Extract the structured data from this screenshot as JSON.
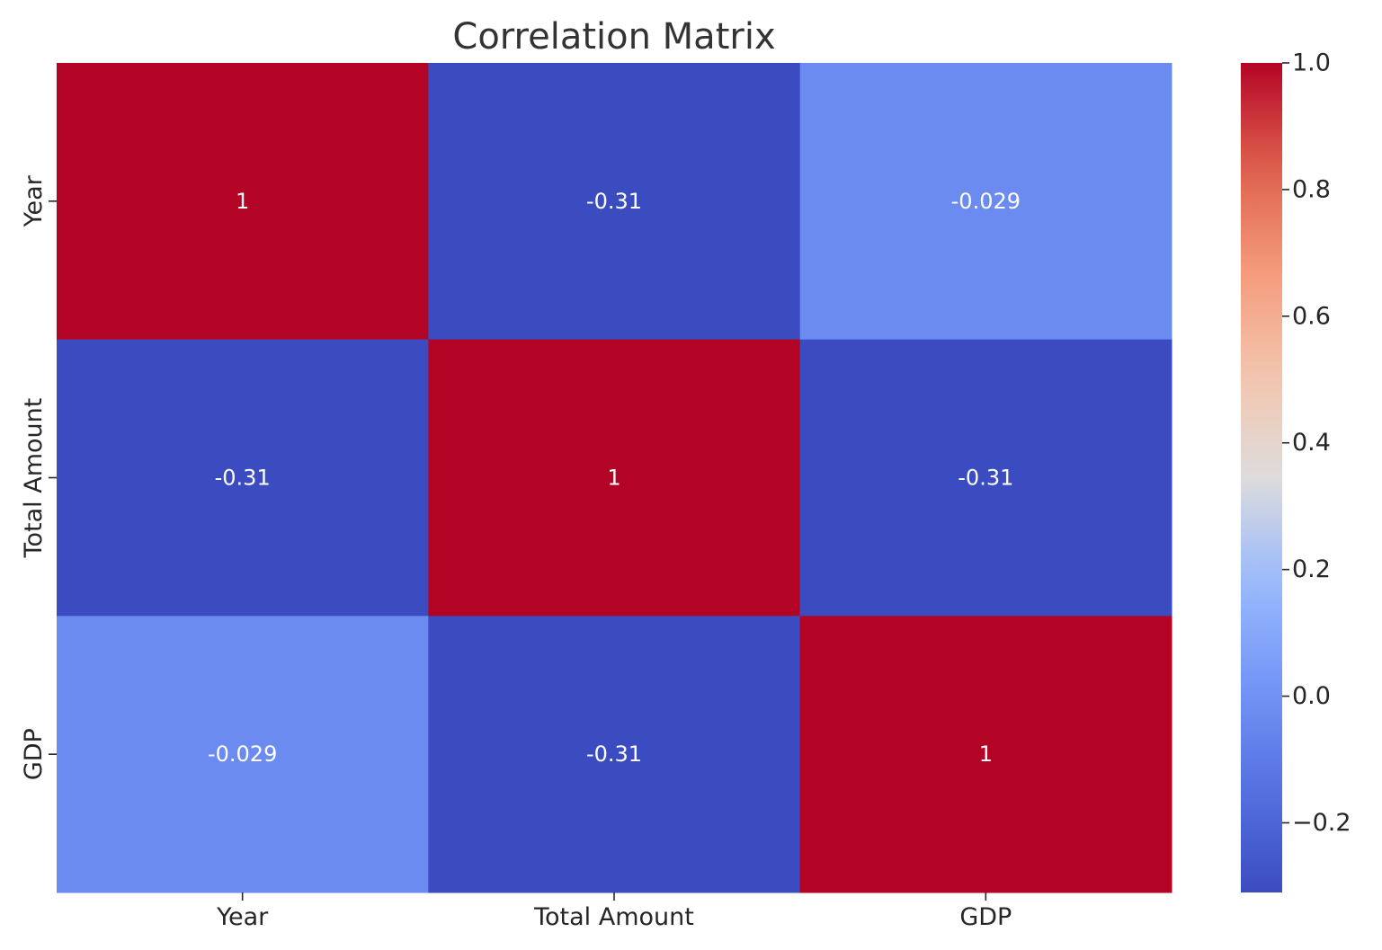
{
  "chart_data": {
    "type": "heatmap",
    "title": "Correlation Matrix",
    "xlabel": "",
    "ylabel": "",
    "x_categories": [
      "Year",
      "Total Amount",
      "GDP"
    ],
    "y_categories": [
      "Year",
      "Total Amount",
      "GDP"
    ],
    "values": [
      [
        1,
        -0.31,
        -0.029
      ],
      [
        -0.31,
        1,
        -0.31
      ],
      [
        -0.029,
        -0.31,
        1
      ]
    ],
    "cell_labels": [
      [
        "1",
        "-0.31",
        "-0.029"
      ],
      [
        "-0.31",
        "1",
        "-0.31"
      ],
      [
        "-0.029",
        "-0.31",
        "1"
      ]
    ],
    "colormap": "coolwarm",
    "colors": {
      "low": "#3b4cc0",
      "mid": "#dddcdc",
      "high": "#b40426"
    },
    "colorbar": {
      "min": -0.31,
      "max": 1.0,
      "ticks": [
        -0.2,
        0.0,
        0.2,
        0.4,
        0.6,
        0.8,
        1.0
      ],
      "tick_labels": [
        "−0.2",
        "0.0",
        "0.2",
        "0.4",
        "0.6",
        "0.8",
        "1.0"
      ]
    },
    "grid": false,
    "legend": "colorbar-right"
  }
}
